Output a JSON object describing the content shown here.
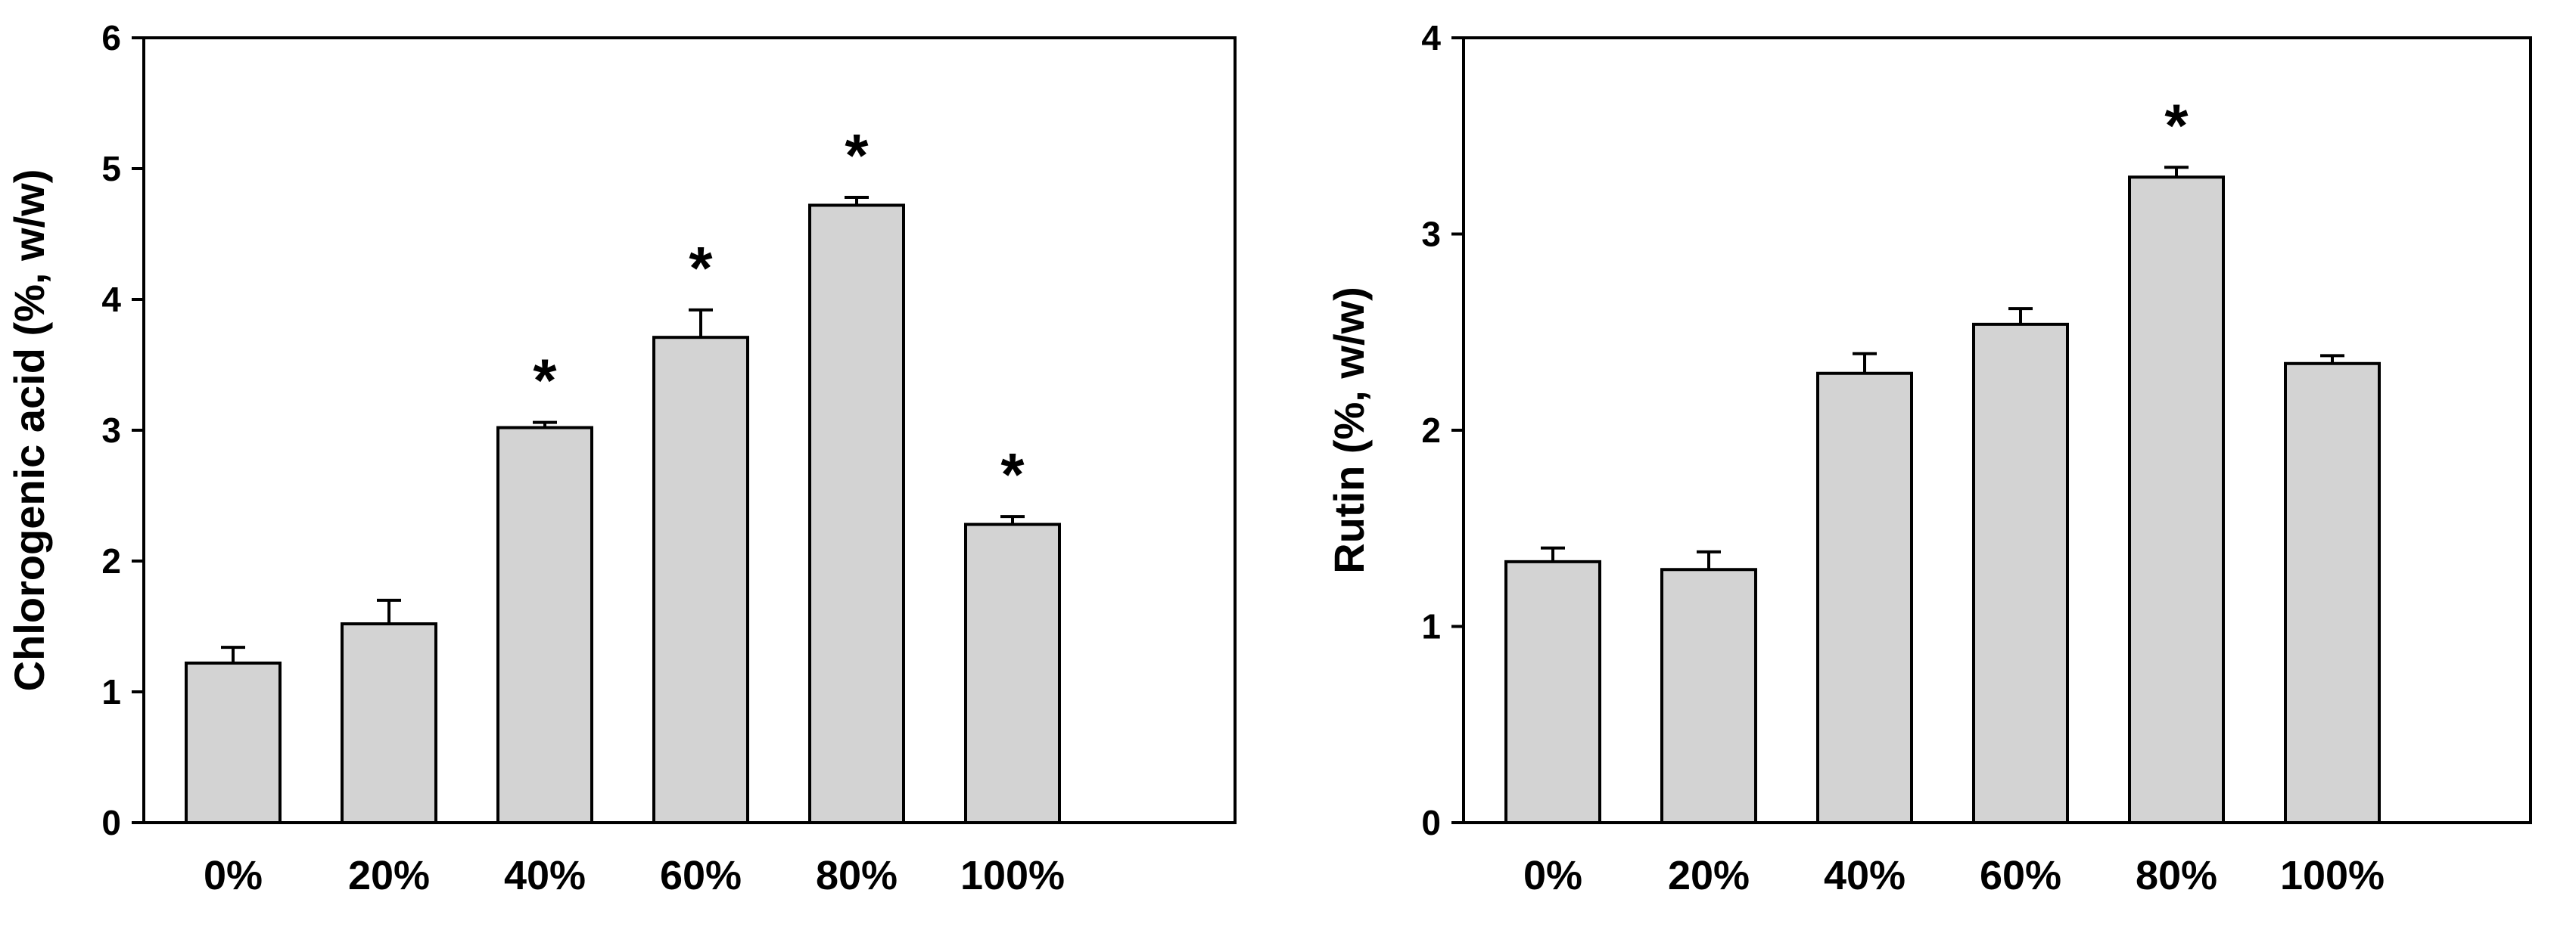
{
  "figure": {
    "colors": {
      "bar_fill": "#d3d3d3",
      "stroke": "#000000",
      "background": "#ffffff"
    }
  },
  "chart_data": [
    {
      "type": "bar",
      "title": "",
      "xlabel": "",
      "ylabel": "Chlorogenic acid (%, w/w)",
      "categories": [
        "0%",
        "20%",
        "40%",
        "60%",
        "80%",
        "100%"
      ],
      "values": [
        1.22,
        1.52,
        3.02,
        3.71,
        4.72,
        2.28
      ],
      "errors": [
        0.12,
        0.18,
        0.04,
        0.21,
        0.06,
        0.06
      ],
      "significance": [
        "",
        "",
        "*",
        "*",
        "*",
        "*"
      ],
      "ylim": [
        0,
        6
      ],
      "yticks": [
        "0",
        "1",
        "2",
        "3",
        "4",
        "5",
        "6"
      ],
      "grid": false,
      "legend": "none"
    },
    {
      "type": "bar",
      "title": "",
      "xlabel": "",
      "ylabel": "Rutin (%, w/w)",
      "categories": [
        "0%",
        "20%",
        "40%",
        "60%",
        "80%",
        "100%"
      ],
      "values": [
        1.33,
        1.29,
        2.29,
        2.54,
        3.29,
        2.34
      ],
      "errors": [
        0.07,
        0.09,
        0.1,
        0.08,
        0.05,
        0.04
      ],
      "significance": [
        "",
        "",
        "",
        "",
        "*",
        ""
      ],
      "ylim": [
        0,
        4
      ],
      "yticks": [
        "0",
        "1",
        "2",
        "3",
        "4"
      ],
      "grid": false,
      "legend": "none"
    }
  ]
}
